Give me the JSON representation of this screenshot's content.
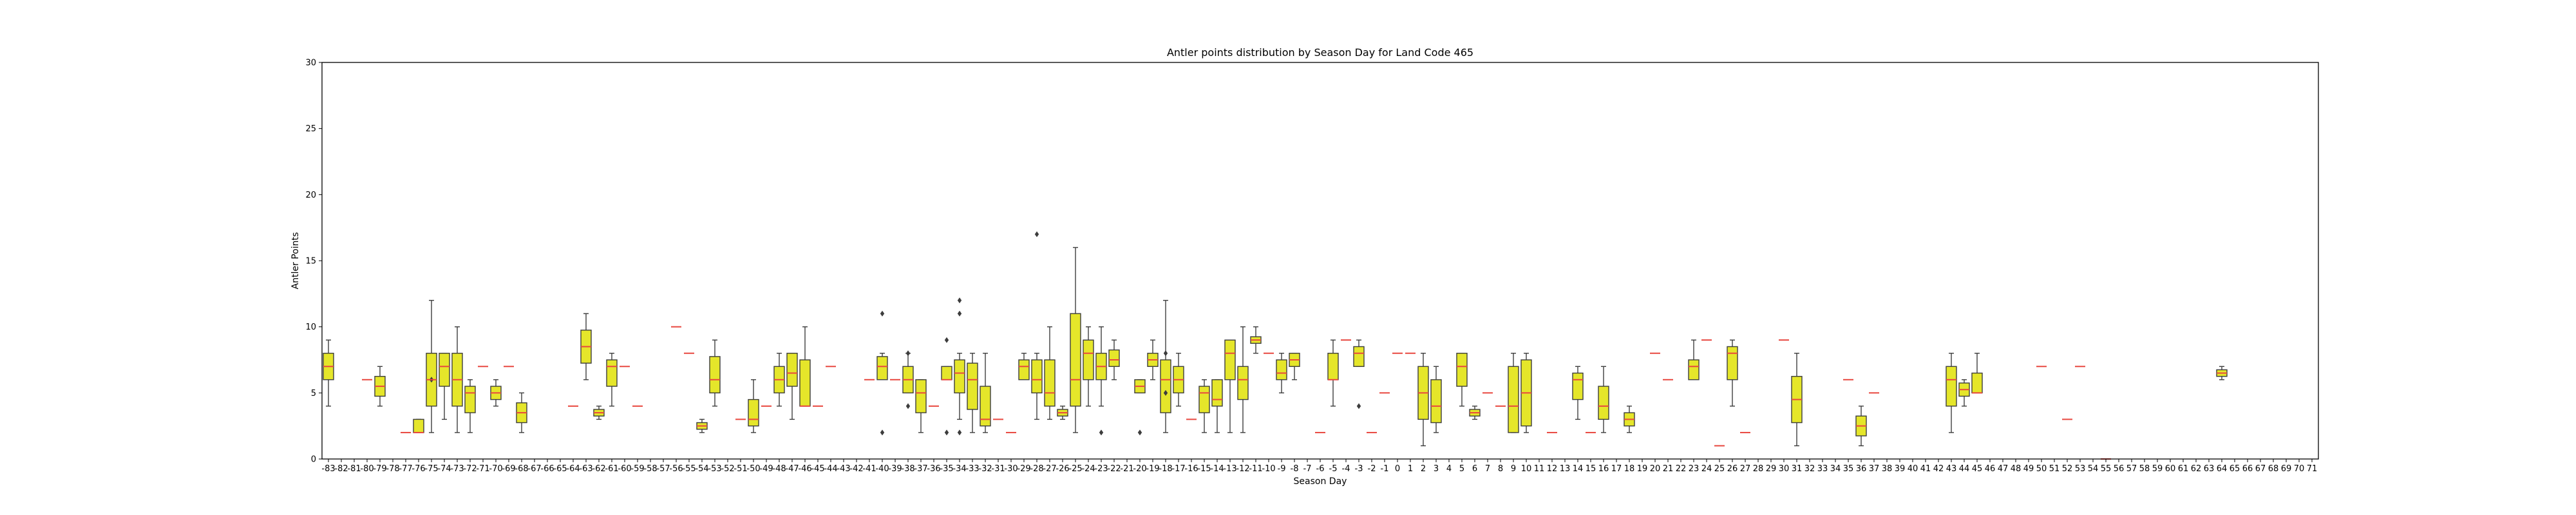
{
  "chart_data": {
    "type": "box",
    "title": "Antler points distribution by Season Day for Land Code 465",
    "xlabel": "Season Day",
    "ylabel": "Antler Points",
    "ylim": [
      0,
      30
    ],
    "yticks": [
      0,
      5,
      10,
      15,
      20,
      25,
      30
    ],
    "grid": false,
    "categories": [
      "-83",
      "-82",
      "-81",
      "-80",
      "-79",
      "-78",
      "-77",
      "-76",
      "-75",
      "-74",
      "-73",
      "-72",
      "-71",
      "-70",
      "-69",
      "-68",
      "-67",
      "-66",
      "-65",
      "-64",
      "-63",
      "-62",
      "-61",
      "-60",
      "-59",
      "-58",
      "-57",
      "-56",
      "-55",
      "-54",
      "-53",
      "-52",
      "-51",
      "-50",
      "-49",
      "-48",
      "-47",
      "-46",
      "-45",
      "-44",
      "-43",
      "-42",
      "-41",
      "-40",
      "-39",
      "-38",
      "-37",
      "-36",
      "-35",
      "-34",
      "-33",
      "-32",
      "-31",
      "-30",
      "-29",
      "-28",
      "-27",
      "-26",
      "-25",
      "-24",
      "-23",
      "-22",
      "-21",
      "-20",
      "-19",
      "-18",
      "-17",
      "-16",
      "-15",
      "-14",
      "-13",
      "-12",
      "-11",
      "-10",
      "-9",
      "-8",
      "-7",
      "-6",
      "-5",
      "-4",
      "-3",
      "-2",
      "-1",
      "0",
      "1",
      "2",
      "3",
      "4",
      "5",
      "6",
      "7",
      "8",
      "9",
      "10",
      "11",
      "12",
      "13",
      "14",
      "15",
      "16",
      "17",
      "18",
      "19",
      "20",
      "21",
      "22",
      "23",
      "24",
      "25",
      "26",
      "27",
      "28",
      "29",
      "30",
      "31",
      "32",
      "33",
      "34",
      "35",
      "36",
      "37",
      "38",
      "39",
      "40",
      "41",
      "42",
      "43",
      "44",
      "45",
      "46",
      "47",
      "48",
      "49",
      "50",
      "51",
      "52",
      "53",
      "54",
      "55",
      "56",
      "57",
      "58",
      "59",
      "60",
      "61",
      "62",
      "63",
      "64",
      "65",
      "66",
      "67",
      "68",
      "69",
      "70",
      "71"
    ],
    "box_color": "#e5e62a",
    "median_color": "#e8473f",
    "boxes": [
      {
        "x": "-83",
        "min": 4,
        "q1": 6,
        "median": 7,
        "q3": 8,
        "max": 9,
        "outliers": []
      },
      {
        "x": "-80",
        "median": 6
      },
      {
        "x": "-79",
        "min": 4,
        "q1": 4.75,
        "median": 5.5,
        "q3": 6.25,
        "max": 7,
        "outliers": []
      },
      {
        "x": "-77",
        "median": 2
      },
      {
        "x": "-76",
        "min": 2,
        "q1": 2,
        "median": 2,
        "q3": 3,
        "max": 3,
        "outliers": []
      },
      {
        "x": "-75",
        "min": 2,
        "q1": 4,
        "median": 6,
        "q3": 8,
        "max": 12,
        "outliers": [
          6
        ]
      },
      {
        "x": "-74",
        "min": 3,
        "q1": 5.5,
        "median": 7,
        "q3": 8,
        "max": 8,
        "outliers": []
      },
      {
        "x": "-73",
        "min": 2,
        "q1": 4,
        "median": 6,
        "q3": 8,
        "max": 10,
        "outliers": []
      },
      {
        "x": "-72",
        "min": 2,
        "q1": 3.5,
        "median": 5,
        "q3": 5.5,
        "max": 6,
        "outliers": []
      },
      {
        "x": "-71",
        "median": 7
      },
      {
        "x": "-70",
        "min": 4,
        "q1": 4.5,
        "median": 5,
        "q3": 5.5,
        "max": 6,
        "outliers": []
      },
      {
        "x": "-69",
        "median": 7
      },
      {
        "x": "-68",
        "min": 2,
        "q1": 2.75,
        "median": 3.5,
        "q3": 4.25,
        "max": 5,
        "outliers": []
      },
      {
        "x": "-64",
        "median": 4
      },
      {
        "x": "-63",
        "min": 6,
        "q1": 7.25,
        "median": 8.5,
        "q3": 9.75,
        "max": 11,
        "outliers": []
      },
      {
        "x": "-62",
        "min": 3,
        "q1": 3.25,
        "median": 3.5,
        "q3": 3.75,
        "max": 4,
        "outliers": []
      },
      {
        "x": "-61",
        "min": 4,
        "q1": 5.5,
        "median": 7,
        "q3": 7.5,
        "max": 8,
        "outliers": []
      },
      {
        "x": "-60",
        "median": 7
      },
      {
        "x": "-59",
        "median": 4
      },
      {
        "x": "-56",
        "median": 10
      },
      {
        "x": "-55",
        "median": 8
      },
      {
        "x": "-54",
        "min": 2,
        "q1": 2.25,
        "median": 2.5,
        "q3": 2.75,
        "max": 3,
        "outliers": []
      },
      {
        "x": "-53",
        "min": 4,
        "q1": 5,
        "median": 6,
        "q3": 7.75,
        "max": 9,
        "outliers": []
      },
      {
        "x": "-51",
        "median": 3
      },
      {
        "x": "-50",
        "min": 2,
        "q1": 2.5,
        "median": 3,
        "q3": 4.5,
        "max": 6,
        "outliers": []
      },
      {
        "x": "-49",
        "median": 4
      },
      {
        "x": "-48",
        "min": 4,
        "q1": 5,
        "median": 6,
        "q3": 7,
        "max": 8,
        "outliers": []
      },
      {
        "x": "-47",
        "min": 3,
        "q1": 5.5,
        "median": 6.5,
        "q3": 8,
        "max": 8,
        "outliers": []
      },
      {
        "x": "-46",
        "min": 4,
        "q1": 4,
        "median": 4,
        "q3": 7.5,
        "max": 10,
        "outliers": []
      },
      {
        "x": "-45",
        "median": 4
      },
      {
        "x": "-44",
        "median": 7
      },
      {
        "x": "-41",
        "median": 6
      },
      {
        "x": "-40",
        "min": 6,
        "q1": 6,
        "median": 7,
        "q3": 7.75,
        "max": 8,
        "outliers": [
          2,
          11
        ]
      },
      {
        "x": "-39",
        "median": 6
      },
      {
        "x": "-38",
        "min": 5,
        "q1": 5,
        "median": 6,
        "q3": 7,
        "max": 8,
        "outliers": [
          4,
          8
        ]
      },
      {
        "x": "-37",
        "min": 2,
        "q1": 3.5,
        "median": 5,
        "q3": 6,
        "max": 6,
        "outliers": []
      },
      {
        "x": "-36",
        "median": 4
      },
      {
        "x": "-35",
        "min": 6,
        "q1": 6,
        "median": 6,
        "q3": 7,
        "max": 7,
        "outliers": [
          2,
          9
        ]
      },
      {
        "x": "-34",
        "min": 3,
        "q1": 5,
        "median": 6.5,
        "q3": 7.5,
        "max": 8,
        "outliers": [
          2,
          11,
          12
        ]
      },
      {
        "x": "-33",
        "min": 2,
        "q1": 3.75,
        "median": 6,
        "q3": 7.25,
        "max": 8,
        "outliers": []
      },
      {
        "x": "-32",
        "min": 2,
        "q1": 2.5,
        "median": 3,
        "q3": 5.5,
        "max": 8,
        "outliers": []
      },
      {
        "x": "-31",
        "median": 3
      },
      {
        "x": "-30",
        "median": 2
      },
      {
        "x": "-29",
        "min": 6,
        "q1": 6,
        "median": 7,
        "q3": 7.5,
        "max": 8,
        "outliers": []
      },
      {
        "x": "-28",
        "min": 3,
        "q1": 5,
        "median": 6,
        "q3": 7.5,
        "max": 8,
        "outliers": [
          17
        ]
      },
      {
        "x": "-27",
        "min": 3,
        "q1": 4,
        "median": 5,
        "q3": 7.5,
        "max": 10,
        "outliers": []
      },
      {
        "x": "-26",
        "min": 3,
        "q1": 3.25,
        "median": 3.5,
        "q3": 3.75,
        "max": 4,
        "outliers": []
      },
      {
        "x": "-25",
        "min": 2,
        "q1": 4,
        "median": 6,
        "q3": 11,
        "max": 16,
        "outliers": []
      },
      {
        "x": "-24",
        "min": 4,
        "q1": 6,
        "median": 8,
        "q3": 9,
        "max": 10,
        "outliers": []
      },
      {
        "x": "-23",
        "min": 4,
        "q1": 6,
        "median": 7,
        "q3": 8,
        "max": 10,
        "outliers": [
          2
        ]
      },
      {
        "x": "-22",
        "min": 6,
        "q1": 7,
        "median": 7.5,
        "q3": 8.25,
        "max": 9,
        "outliers": []
      },
      {
        "x": "-20",
        "min": 5,
        "q1": 5,
        "median": 5.5,
        "q3": 6,
        "max": 6,
        "outliers": [
          2
        ]
      },
      {
        "x": "-19",
        "min": 6,
        "q1": 7,
        "median": 7.5,
        "q3": 8,
        "max": 9,
        "outliers": []
      },
      {
        "x": "-18",
        "min": 2,
        "q1": 3.5,
        "median": 6,
        "q3": 7.5,
        "max": 12,
        "outliers": [
          5,
          8
        ]
      },
      {
        "x": "-17",
        "min": 4,
        "q1": 5,
        "median": 6,
        "q3": 7,
        "max": 8,
        "outliers": []
      },
      {
        "x": "-16",
        "median": 3
      },
      {
        "x": "-15",
        "min": 2,
        "q1": 3.5,
        "median": 5,
        "q3": 5.5,
        "max": 6,
        "outliers": []
      },
      {
        "x": "-14",
        "min": 2,
        "q1": 4,
        "median": 4.5,
        "q3": 6,
        "max": 6,
        "outliers": []
      },
      {
        "x": "-13",
        "min": 2,
        "q1": 6,
        "median": 8,
        "q3": 9,
        "max": 9,
        "outliers": []
      },
      {
        "x": "-12",
        "min": 2,
        "q1": 4.5,
        "median": 6,
        "q3": 7,
        "max": 10,
        "outliers": []
      },
      {
        "x": "-11",
        "min": 8,
        "q1": 8.75,
        "median": 9,
        "q3": 9.25,
        "max": 10,
        "outliers": []
      },
      {
        "x": "-10",
        "median": 8
      },
      {
        "x": "-9",
        "min": 5,
        "q1": 6,
        "median": 6.5,
        "q3": 7.5,
        "max": 8,
        "outliers": []
      },
      {
        "x": "-8",
        "min": 6,
        "q1": 7,
        "median": 7.5,
        "q3": 8,
        "max": 8,
        "outliers": []
      },
      {
        "x": "-6",
        "median": 2
      },
      {
        "x": "-5",
        "min": 4,
        "q1": 6,
        "median": 6,
        "q3": 8,
        "max": 9,
        "outliers": []
      },
      {
        "x": "-4",
        "median": 9
      },
      {
        "x": "-3",
        "min": 7,
        "q1": 7,
        "median": 8,
        "q3": 8.5,
        "max": 9,
        "outliers": [
          4
        ]
      },
      {
        "x": "-2",
        "median": 2
      },
      {
        "x": "-1",
        "median": 5
      },
      {
        "x": "0",
        "median": 8
      },
      {
        "x": "1",
        "median": 8
      },
      {
        "x": "2",
        "min": 1,
        "q1": 3,
        "median": 5,
        "q3": 7,
        "max": 8,
        "outliers": []
      },
      {
        "x": "3",
        "min": 2,
        "q1": 2.75,
        "median": 4,
        "q3": 6,
        "max": 7,
        "outliers": []
      },
      {
        "x": "5",
        "min": 4,
        "q1": 5.5,
        "median": 7,
        "q3": 8,
        "max": 8,
        "outliers": []
      },
      {
        "x": "6",
        "min": 3,
        "q1": 3.25,
        "median": 3.5,
        "q3": 3.75,
        "max": 4,
        "outliers": []
      },
      {
        "x": "7",
        "median": 5
      },
      {
        "x": "8",
        "median": 4
      },
      {
        "x": "9",
        "min": 2,
        "q1": 2,
        "median": 4,
        "q3": 7,
        "max": 8,
        "outliers": []
      },
      {
        "x": "10",
        "min": 2,
        "q1": 2.5,
        "median": 5,
        "q3": 7.5,
        "max": 8,
        "outliers": []
      },
      {
        "x": "12",
        "median": 2
      },
      {
        "x": "14",
        "min": 3,
        "q1": 4.5,
        "median": 6,
        "q3": 6.5,
        "max": 7,
        "outliers": []
      },
      {
        "x": "15",
        "median": 2
      },
      {
        "x": "16",
        "min": 2,
        "q1": 3,
        "median": 4,
        "q3": 5.5,
        "max": 7,
        "outliers": []
      },
      {
        "x": "18",
        "min": 2,
        "q1": 2.5,
        "median": 3,
        "q3": 3.5,
        "max": 4,
        "outliers": []
      },
      {
        "x": "20",
        "median": 8
      },
      {
        "x": "21",
        "median": 6
      },
      {
        "x": "23",
        "min": 6,
        "q1": 6,
        "median": 7,
        "q3": 7.5,
        "max": 9,
        "outliers": []
      },
      {
        "x": "24",
        "median": 9
      },
      {
        "x": "25",
        "median": 1
      },
      {
        "x": "26",
        "min": 4,
        "q1": 6,
        "median": 8,
        "q3": 8.5,
        "max": 9,
        "outliers": []
      },
      {
        "x": "27",
        "median": 2
      },
      {
        "x": "30",
        "median": 9
      },
      {
        "x": "31",
        "min": 1,
        "q1": 2.75,
        "median": 4.5,
        "q3": 6.25,
        "max": 8,
        "outliers": []
      },
      {
        "x": "35",
        "median": 6
      },
      {
        "x": "36",
        "min": 1,
        "q1": 1.75,
        "median": 2.5,
        "q3": 3.25,
        "max": 4,
        "outliers": []
      },
      {
        "x": "37",
        "median": 5
      },
      {
        "x": "43",
        "min": 2,
        "q1": 4,
        "median": 6,
        "q3": 7,
        "max": 8,
        "outliers": []
      },
      {
        "x": "44",
        "min": 4,
        "q1": 4.75,
        "median": 5.25,
        "q3": 5.75,
        "max": 6,
        "outliers": []
      },
      {
        "x": "45",
        "min": 5,
        "q1": 5,
        "median": 5,
        "q3": 6.5,
        "max": 8,
        "outliers": []
      },
      {
        "x": "50",
        "median": 7
      },
      {
        "x": "52",
        "median": 3
      },
      {
        "x": "53",
        "median": 7
      },
      {
        "x": "55",
        "median": 0
      },
      {
        "x": "64",
        "min": 6,
        "q1": 6.25,
        "median": 6.5,
        "q3": 6.75,
        "max": 7,
        "outliers": []
      }
    ]
  }
}
